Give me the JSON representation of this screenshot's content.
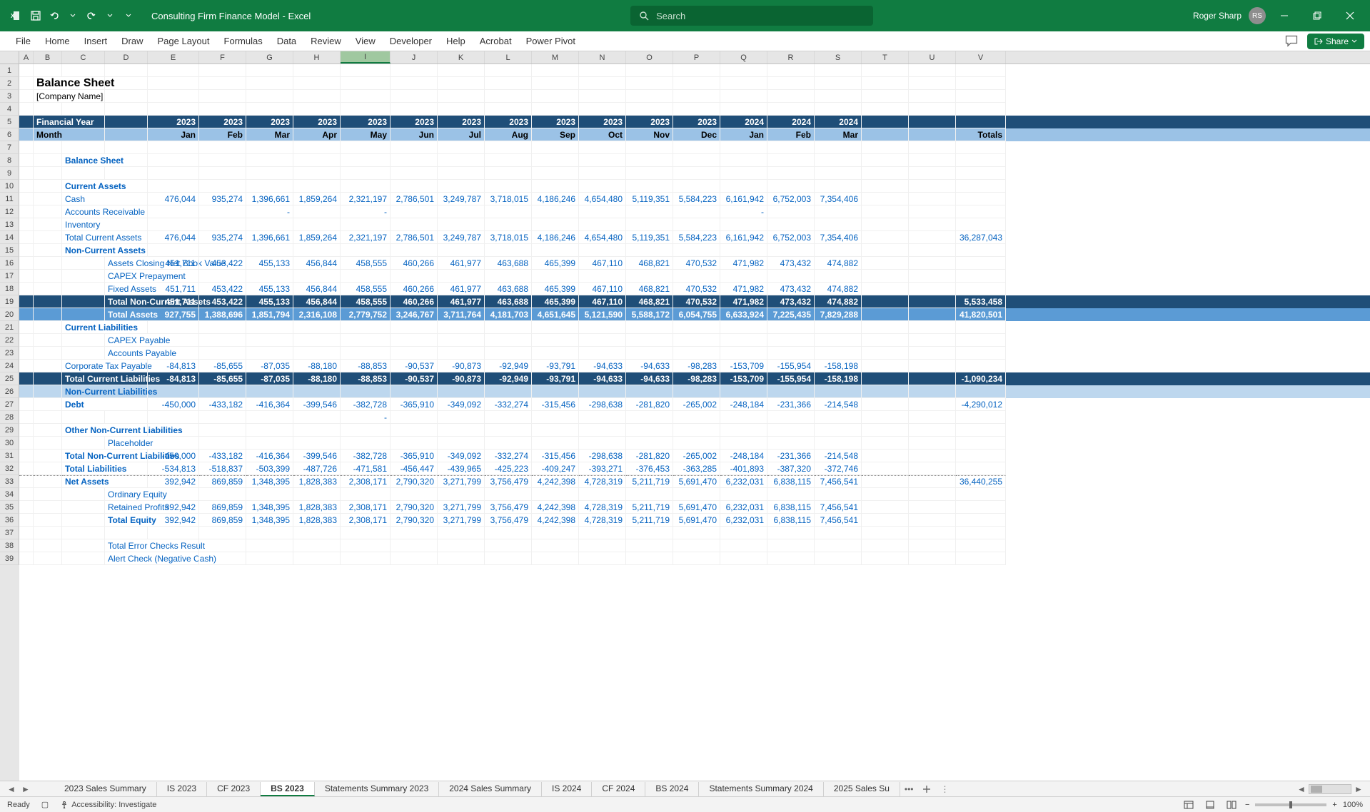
{
  "app": {
    "doc_title": "Consulting Firm Finance Model  -  Excel",
    "search_placeholder": "Search",
    "user": "Roger Sharp",
    "initials": "RS",
    "zoom": "100%",
    "status": "Ready",
    "accessibility": "Accessibility: Investigate"
  },
  "ribbon_tabs": [
    "File",
    "Home",
    "Insert",
    "Draw",
    "Page Layout",
    "Formulas",
    "Data",
    "Review",
    "View",
    "Developer",
    "Help",
    "Acrobat",
    "Power Pivot"
  ],
  "share_label": "Share",
  "columns": [
    "A",
    "B",
    "C",
    "D",
    "E",
    "F",
    "G",
    "H",
    "I",
    "J",
    "K",
    "L",
    "M",
    "N",
    "O",
    "P",
    "Q",
    "R",
    "S",
    "T",
    "U",
    "V"
  ],
  "selected_col": "I",
  "sheet_tabs": [
    "2023 Sales Summary",
    "IS 2023",
    "CF 2023",
    "BS 2023",
    "Statements Summary 2023",
    "2024 Sales Summary",
    "IS 2024",
    "CF 2024",
    "BS 2024",
    "Statements Summary 2024",
    "2025 Sales Su"
  ],
  "active_tab": 3,
  "title": "Balance Sheet",
  "subtitle": "[Company Name]",
  "years": [
    "2023",
    "2023",
    "2023",
    "2023",
    "2023",
    "2023",
    "2023",
    "2023",
    "2023",
    "2023",
    "2023",
    "2023",
    "2024",
    "2024",
    "2024",
    ""
  ],
  "months": [
    "Jan",
    "Feb",
    "Mar",
    "Apr",
    "May",
    "Jun",
    "Jul",
    "Aug",
    "Sep",
    "Oct",
    "Nov",
    "Dec",
    "Jan",
    "Feb",
    "Mar",
    "Totals"
  ],
  "fy_label": "Financial Year",
  "month_label": "Month",
  "rows": {
    "bs_header": "Balance Sheet",
    "ca_header": "Current Assets",
    "cash": {
      "label": "Cash",
      "v": [
        "476,044",
        "935,274",
        "1,396,661",
        "1,859,264",
        "2,321,197",
        "2,786,501",
        "3,249,787",
        "3,718,015",
        "4,186,246",
        "4,654,480",
        "5,119,351",
        "5,584,223",
        "6,161,942",
        "6,752,003",
        "7,354,406",
        ""
      ]
    },
    "ar": {
      "label": "Accounts Receivable",
      "v": [
        "",
        "",
        "-",
        "",
        "-",
        "",
        "",
        "",
        "",
        "",
        "",
        "",
        "-",
        "",
        "",
        ""
      ]
    },
    "inv": {
      "label": "Inventory"
    },
    "tca": {
      "label": "Total Current Assets",
      "v": [
        "476,044",
        "935,274",
        "1,396,661",
        "1,859,264",
        "2,321,197",
        "2,786,501",
        "3,249,787",
        "3,718,015",
        "4,186,246",
        "4,654,480",
        "5,119,351",
        "5,584,223",
        "6,161,942",
        "6,752,003",
        "7,354,406",
        "36,287,043"
      ]
    },
    "nca_header": "Non-Current Assets",
    "nbv": {
      "label": "Assets Closing Net Book Value",
      "v": [
        "451,711",
        "453,422",
        "455,133",
        "456,844",
        "458,555",
        "460,266",
        "461,977",
        "463,688",
        "465,399",
        "467,110",
        "468,821",
        "470,532",
        "471,982",
        "473,432",
        "474,882",
        ""
      ]
    },
    "capex_pre": {
      "label": "CAPEX Prepayment"
    },
    "fa": {
      "label": "Fixed Assets",
      "v": [
        "451,711",
        "453,422",
        "455,133",
        "456,844",
        "458,555",
        "460,266",
        "461,977",
        "463,688",
        "465,399",
        "467,110",
        "468,821",
        "470,532",
        "471,982",
        "473,432",
        "474,882",
        ""
      ]
    },
    "tnca": {
      "label": "Total Non-Current Assets",
      "v": [
        "451,711",
        "453,422",
        "455,133",
        "456,844",
        "458,555",
        "460,266",
        "461,977",
        "463,688",
        "465,399",
        "467,110",
        "468,821",
        "470,532",
        "471,982",
        "473,432",
        "474,882",
        "5,533,458"
      ]
    },
    "ta": {
      "label": "Total Assets",
      "v": [
        "927,755",
        "1,388,696",
        "1,851,794",
        "2,316,108",
        "2,779,752",
        "3,246,767",
        "3,711,764",
        "4,181,703",
        "4,651,645",
        "5,121,590",
        "5,588,172",
        "6,054,755",
        "6,633,924",
        "7,225,435",
        "7,829,288",
        "41,820,501"
      ]
    },
    "cl_header": "Current Liabilities",
    "capex_pay": {
      "label": "CAPEX Payable"
    },
    "ap": {
      "label": "Accounts Payable"
    },
    "ctp": {
      "label": "Corporate Tax Payable",
      "v": [
        "-84,813",
        "-85,655",
        "-87,035",
        "-88,180",
        "-88,853",
        "-90,537",
        "-90,873",
        "-92,949",
        "-93,791",
        "-94,633",
        "-94,633",
        "-98,283",
        "-153,709",
        "-155,954",
        "-158,198",
        ""
      ]
    },
    "tcl": {
      "label": "Total Current Liabilities",
      "v": [
        "-84,813",
        "-85,655",
        "-87,035",
        "-88,180",
        "-88,853",
        "-90,537",
        "-90,873",
        "-92,949",
        "-93,791",
        "-94,633",
        "-94,633",
        "-98,283",
        "-153,709",
        "-155,954",
        "-158,198",
        "-1,090,234"
      ]
    },
    "ncl_header": "Non-Current Liabilities",
    "debt": {
      "label": "Debt",
      "v": [
        "-450,000",
        "-433,182",
        "-416,364",
        "-399,546",
        "-382,728",
        "-365,910",
        "-349,092",
        "-332,274",
        "-315,456",
        "-298,638",
        "-281,820",
        "-265,002",
        "-248,184",
        "-231,366",
        "-214,548",
        "-4,290,012"
      ]
    },
    "dash": "-",
    "oncl_header": "Other Non-Current Liabilities",
    "placeholder": {
      "label": "Placeholder"
    },
    "tncl": {
      "label": "Total Non-Current Liabilities",
      "v": [
        "-450,000",
        "-433,182",
        "-416,364",
        "-399,546",
        "-382,728",
        "-365,910",
        "-349,092",
        "-332,274",
        "-315,456",
        "-298,638",
        "-281,820",
        "-265,002",
        "-248,184",
        "-231,366",
        "-214,548",
        ""
      ]
    },
    "tl": {
      "label": "Total Liabilities",
      "v": [
        "-534,813",
        "-518,837",
        "-503,399",
        "-487,726",
        "-471,581",
        "-456,447",
        "-439,965",
        "-425,223",
        "-409,247",
        "-393,271",
        "-376,453",
        "-363,285",
        "-401,893",
        "-387,320",
        "-372,746",
        ""
      ]
    },
    "na": {
      "label": "Net Assets",
      "v": [
        "392,942",
        "869,859",
        "1,348,395",
        "1,828,383",
        "2,308,171",
        "2,790,320",
        "3,271,799",
        "3,756,479",
        "4,242,398",
        "4,728,319",
        "5,211,719",
        "5,691,470",
        "6,232,031",
        "6,838,115",
        "7,456,541",
        "36,440,255"
      ]
    },
    "oe": {
      "label": "Ordinary Equity"
    },
    "rp": {
      "label": "Retained Profits",
      "v": [
        "392,942",
        "869,859",
        "1,348,395",
        "1,828,383",
        "2,308,171",
        "2,790,320",
        "3,271,799",
        "3,756,479",
        "4,242,398",
        "4,728,319",
        "5,211,719",
        "5,691,470",
        "6,232,031",
        "6,838,115",
        "7,456,541",
        ""
      ]
    },
    "te": {
      "label": "Total Equity",
      "v": [
        "392,942",
        "869,859",
        "1,348,395",
        "1,828,383",
        "2,308,171",
        "2,790,320",
        "3,271,799",
        "3,756,479",
        "4,242,398",
        "4,728,319",
        "5,211,719",
        "5,691,470",
        "6,232,031",
        "6,838,115",
        "7,456,541",
        ""
      ]
    },
    "tecr": {
      "label": "Total Error Checks Result"
    },
    "acnc": {
      "label": "Alert Check (Negative Cash)"
    }
  }
}
